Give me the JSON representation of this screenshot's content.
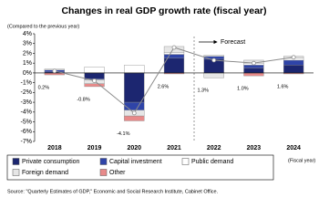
{
  "chart_data": {
    "type": "bar",
    "stacked": true,
    "title": "Changes in real GDP growth rate (fiscal year)",
    "subtitle": "(Compared to the previous year)",
    "x_label": "(Fiscal year)",
    "annotation": "Forecast",
    "source": "Source: \"Quarterly Estimates of GDP,\" Economic and Social Research Institute, Cabinet Office.",
    "categories": [
      "2018",
      "2019",
      "2020",
      "2021",
      "2022",
      "2023",
      "2024"
    ],
    "series": [
      {
        "name": "Private consumption",
        "color": "#1c2670",
        "values": [
          0.1,
          -0.6,
          -3.0,
          1.5,
          1.4,
          0.5,
          0.8
        ]
      },
      {
        "name": "Capital investment",
        "color": "#2f44a8",
        "values": [
          0.2,
          -0.1,
          -0.8,
          0.4,
          0.3,
          0.3,
          0.5
        ]
      },
      {
        "name": "Public demand",
        "color": "#ffffff",
        "values": [
          0.1,
          0.6,
          0.8,
          0.2,
          0.1,
          0.2,
          0.2
        ]
      },
      {
        "name": "Foreign demand",
        "color": "#e6e6e6",
        "values": [
          0.0,
          -0.4,
          -0.6,
          0.6,
          -0.5,
          0.3,
          0.2
        ]
      },
      {
        "name": "Other",
        "color": "#e88a8a",
        "values": [
          -0.2,
          -0.3,
          -0.5,
          -0.1,
          0.0,
          -0.3,
          -0.1
        ]
      }
    ],
    "line_values": [
      0.2,
      -0.8,
      -4.1,
      2.6,
      1.3,
      1.0,
      1.6
    ],
    "line_value_labels": [
      "0.2%",
      "-0.8%",
      "-4.1%",
      "2.6%",
      "1.3%",
      "1.0%",
      "1.6%"
    ],
    "line_color": "#8c8c8c",
    "ylim": [
      -7,
      4
    ],
    "yticks": [
      {
        "value": 4,
        "label": "4%"
      },
      {
        "value": 3,
        "label": "3%"
      },
      {
        "value": 2,
        "label": "2%"
      },
      {
        "value": 1,
        "label": "1%"
      },
      {
        "value": 0,
        "label": "0%"
      },
      {
        "value": -1,
        "label": "-1%"
      },
      {
        "value": -2,
        "label": "-2%"
      },
      {
        "value": -3,
        "label": "-3%"
      },
      {
        "value": -4,
        "label": "-4%"
      },
      {
        "value": -5,
        "label": "-5%"
      },
      {
        "value": -6,
        "label": "-6%"
      },
      {
        "value": -7,
        "label": "-7%"
      }
    ],
    "grid": false
  }
}
